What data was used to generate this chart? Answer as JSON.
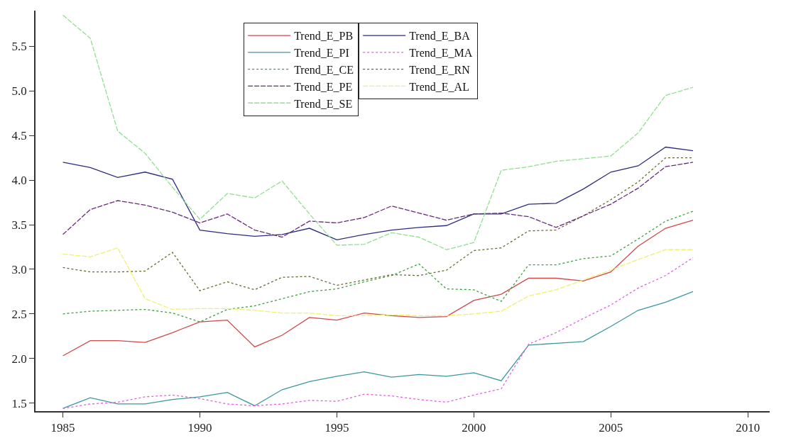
{
  "chart_data": {
    "type": "line",
    "x": [
      1985,
      1986,
      1987,
      1988,
      1989,
      1990,
      1991,
      1992,
      1993,
      1994,
      1995,
      1996,
      1997,
      1998,
      1999,
      2000,
      2001,
      2002,
      2003,
      2004,
      2005,
      2006,
      2007,
      2008
    ],
    "xlim": [
      1984,
      2010.8
    ],
    "xticks": [
      1985,
      1990,
      1995,
      2000,
      2005,
      2010
    ],
    "ylim": [
      1.41,
      5.9
    ],
    "yticks": [
      1.5,
      {
        "value": 2,
        "label": "2.0"
      },
      2.5,
      {
        "value": 3,
        "label": "3.0"
      },
      3.5,
      {
        "value": 4,
        "label": "4.0"
      },
      4.5,
      {
        "value": 5,
        "label": "5.0"
      },
      5.5
    ],
    "legend": "top",
    "marker": "none",
    "series": [
      {
        "name": "Trend_E_PB",
        "color": "#d04848",
        "line_style": "solid",
        "values": [
          2.03,
          2.2,
          2.2,
          2.18,
          2.29,
          2.41,
          2.43,
          2.13,
          2.26,
          2.46,
          2.43,
          2.51,
          2.48,
          2.46,
          2.47,
          2.65,
          2.72,
          2.9,
          2.9,
          2.87,
          2.97,
          3.26,
          3.46,
          3.55
        ]
      },
      {
        "name": "Trend_E_BA",
        "color": "#2c2c80",
        "line_style": "solid",
        "values": [
          4.2,
          4.14,
          4.03,
          4.09,
          4.01,
          3.44,
          3.4,
          3.37,
          3.39,
          3.46,
          3.33,
          3.39,
          3.44,
          3.47,
          3.49,
          3.62,
          3.62,
          3.73,
          3.74,
          3.9,
          4.09,
          4.16,
          4.37,
          4.33
        ]
      },
      {
        "name": "Trend_E_PI",
        "color": "#3a98a0",
        "line_style": "solid",
        "values": [
          1.44,
          1.56,
          1.49,
          1.49,
          1.54,
          1.57,
          1.62,
          1.47,
          1.65,
          1.74,
          1.8,
          1.85,
          1.79,
          1.82,
          1.8,
          1.84,
          1.75,
          2.15,
          2.17,
          2.19,
          2.36,
          2.54,
          2.63,
          2.75
        ]
      },
      {
        "name": "Trend_E_MA",
        "color": "#e060e0",
        "line_style": "dotted",
        "values": [
          1.44,
          1.49,
          1.51,
          1.57,
          1.59,
          1.55,
          1.49,
          1.47,
          1.49,
          1.53,
          1.52,
          1.6,
          1.58,
          1.54,
          1.51,
          1.59,
          1.66,
          2.16,
          2.29,
          2.45,
          2.6,
          2.79,
          2.93,
          3.13
        ]
      },
      {
        "name": "Trend_E_CE",
        "color": "#40a040",
        "line_style": "dotted",
        "values": [
          2.5,
          2.53,
          2.54,
          2.55,
          2.51,
          2.41,
          2.55,
          2.59,
          2.67,
          2.75,
          2.78,
          2.86,
          2.93,
          3.06,
          2.78,
          2.77,
          2.64,
          3.05,
          3.05,
          3.12,
          3.15,
          3.34,
          3.54,
          3.65
        ]
      },
      {
        "name": "Trend_E_RN",
        "color": "#6a6a30",
        "line_style": "dotted",
        "values": [
          3.02,
          2.97,
          2.97,
          2.98,
          3.19,
          2.76,
          2.86,
          2.77,
          2.91,
          2.92,
          2.82,
          2.88,
          2.94,
          2.93,
          2.99,
          3.21,
          3.24,
          3.43,
          3.44,
          3.6,
          3.78,
          3.98,
          4.25,
          4.25
        ]
      },
      {
        "name": "Trend_E_PE",
        "color": "#6a2a7a",
        "line_style": "dashed",
        "values": [
          3.39,
          3.67,
          3.77,
          3.72,
          3.64,
          3.52,
          3.62,
          3.44,
          3.36,
          3.54,
          3.52,
          3.58,
          3.71,
          3.63,
          3.55,
          3.62,
          3.63,
          3.59,
          3.47,
          3.6,
          3.73,
          3.91,
          4.15,
          4.2
        ]
      },
      {
        "name": "Trend_E_AL",
        "color": "#f0f070",
        "line_style": "dashed",
        "values": [
          3.17,
          3.14,
          3.24,
          2.67,
          2.55,
          2.56,
          2.56,
          2.54,
          2.51,
          2.51,
          2.48,
          2.48,
          2.49,
          2.48,
          2.48,
          2.5,
          2.53,
          2.7,
          2.77,
          2.88,
          2.99,
          3.11,
          3.22,
          3.22
        ]
      },
      {
        "name": "Trend_E_SE",
        "color": "#90e090",
        "line_style": "dashed",
        "values": [
          5.85,
          5.59,
          4.55,
          4.3,
          3.92,
          3.56,
          3.85,
          3.8,
          3.99,
          3.62,
          3.27,
          3.28,
          3.41,
          3.36,
          3.22,
          3.3,
          4.11,
          4.15,
          4.21,
          4.24,
          4.27,
          4.53,
          4.95,
          5.04
        ]
      }
    ]
  }
}
